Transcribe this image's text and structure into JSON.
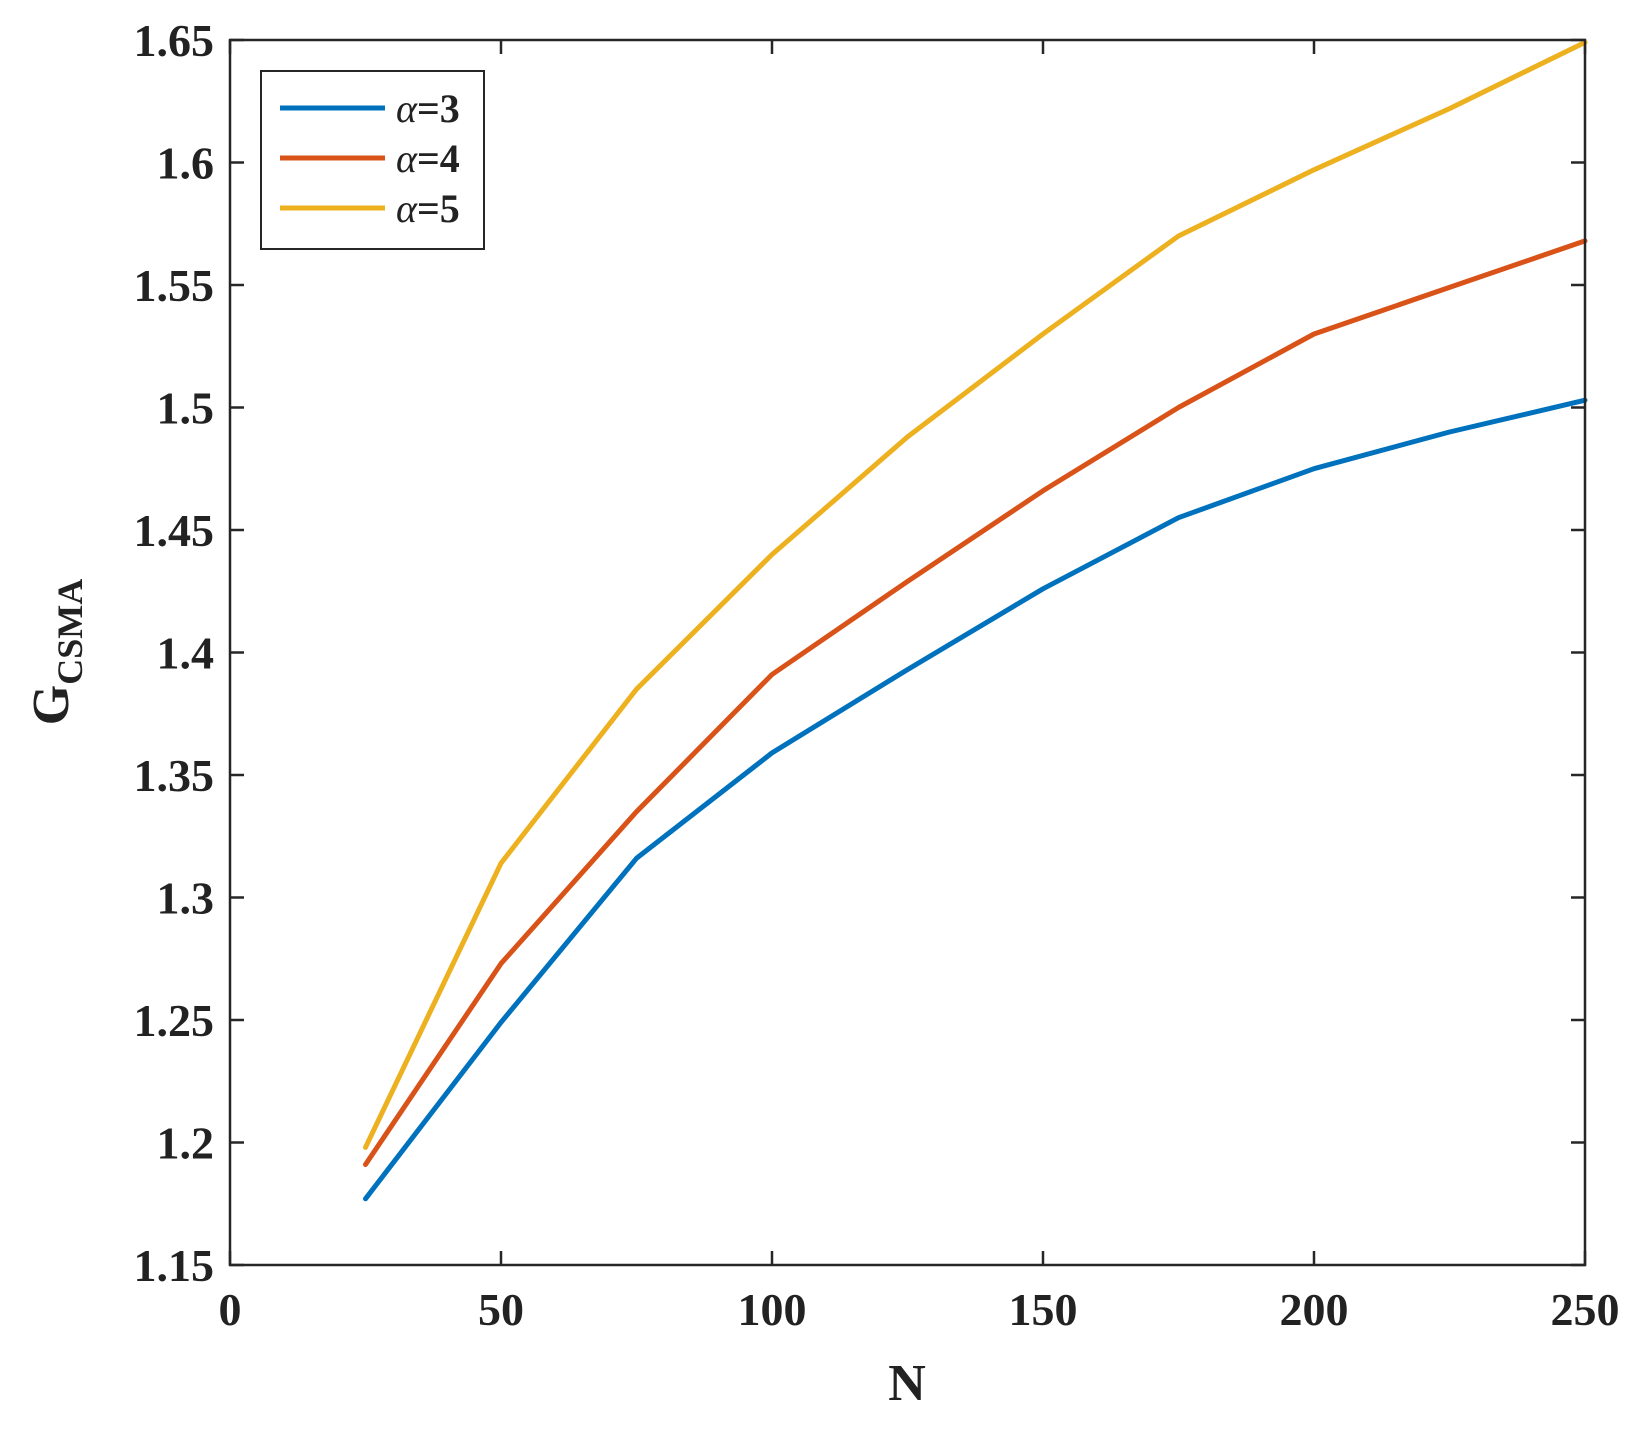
{
  "chart_data": {
    "type": "line",
    "xlabel": "N",
    "ylabel": "G",
    "ylabel_subscript": "CSMA",
    "xlim": [
      0,
      250
    ],
    "ylim": [
      1.15,
      1.65
    ],
    "xticks": [
      0,
      50,
      100,
      150,
      200,
      250
    ],
    "xtick_labels": [
      "0",
      "50",
      "100",
      "150",
      "200",
      "250"
    ],
    "yticks": [
      1.15,
      1.2,
      1.25,
      1.3,
      1.35,
      1.4,
      1.45,
      1.5,
      1.55,
      1.6,
      1.65
    ],
    "ytick_labels": [
      "1.15",
      "1.2",
      "1.25",
      "1.3",
      "1.35",
      "1.4",
      "1.45",
      "1.5",
      "1.55",
      "1.6",
      "1.65"
    ],
    "grid": false,
    "legend_position": "top-left",
    "x": [
      25,
      50,
      75,
      100,
      125,
      150,
      175,
      200,
      225,
      250
    ],
    "series": [
      {
        "name": "α=3",
        "name_symbol": "α",
        "name_rest": "=3",
        "color": "#0072BD",
        "values": [
          1.177,
          1.249,
          1.316,
          1.359,
          1.393,
          1.426,
          1.455,
          1.475,
          1.49,
          1.503
        ]
      },
      {
        "name": "α=4",
        "name_symbol": "α",
        "name_rest": "=4",
        "color": "#D95319",
        "values": [
          1.191,
          1.273,
          1.335,
          1.391,
          1.429,
          1.466,
          1.5,
          1.53,
          1.549,
          1.568
        ]
      },
      {
        "name": "α=5",
        "name_symbol": "α",
        "name_rest": "=5",
        "color": "#EDB120",
        "values": [
          1.198,
          1.314,
          1.385,
          1.44,
          1.488,
          1.53,
          1.57,
          1.597,
          1.622,
          1.649
        ]
      }
    ]
  }
}
